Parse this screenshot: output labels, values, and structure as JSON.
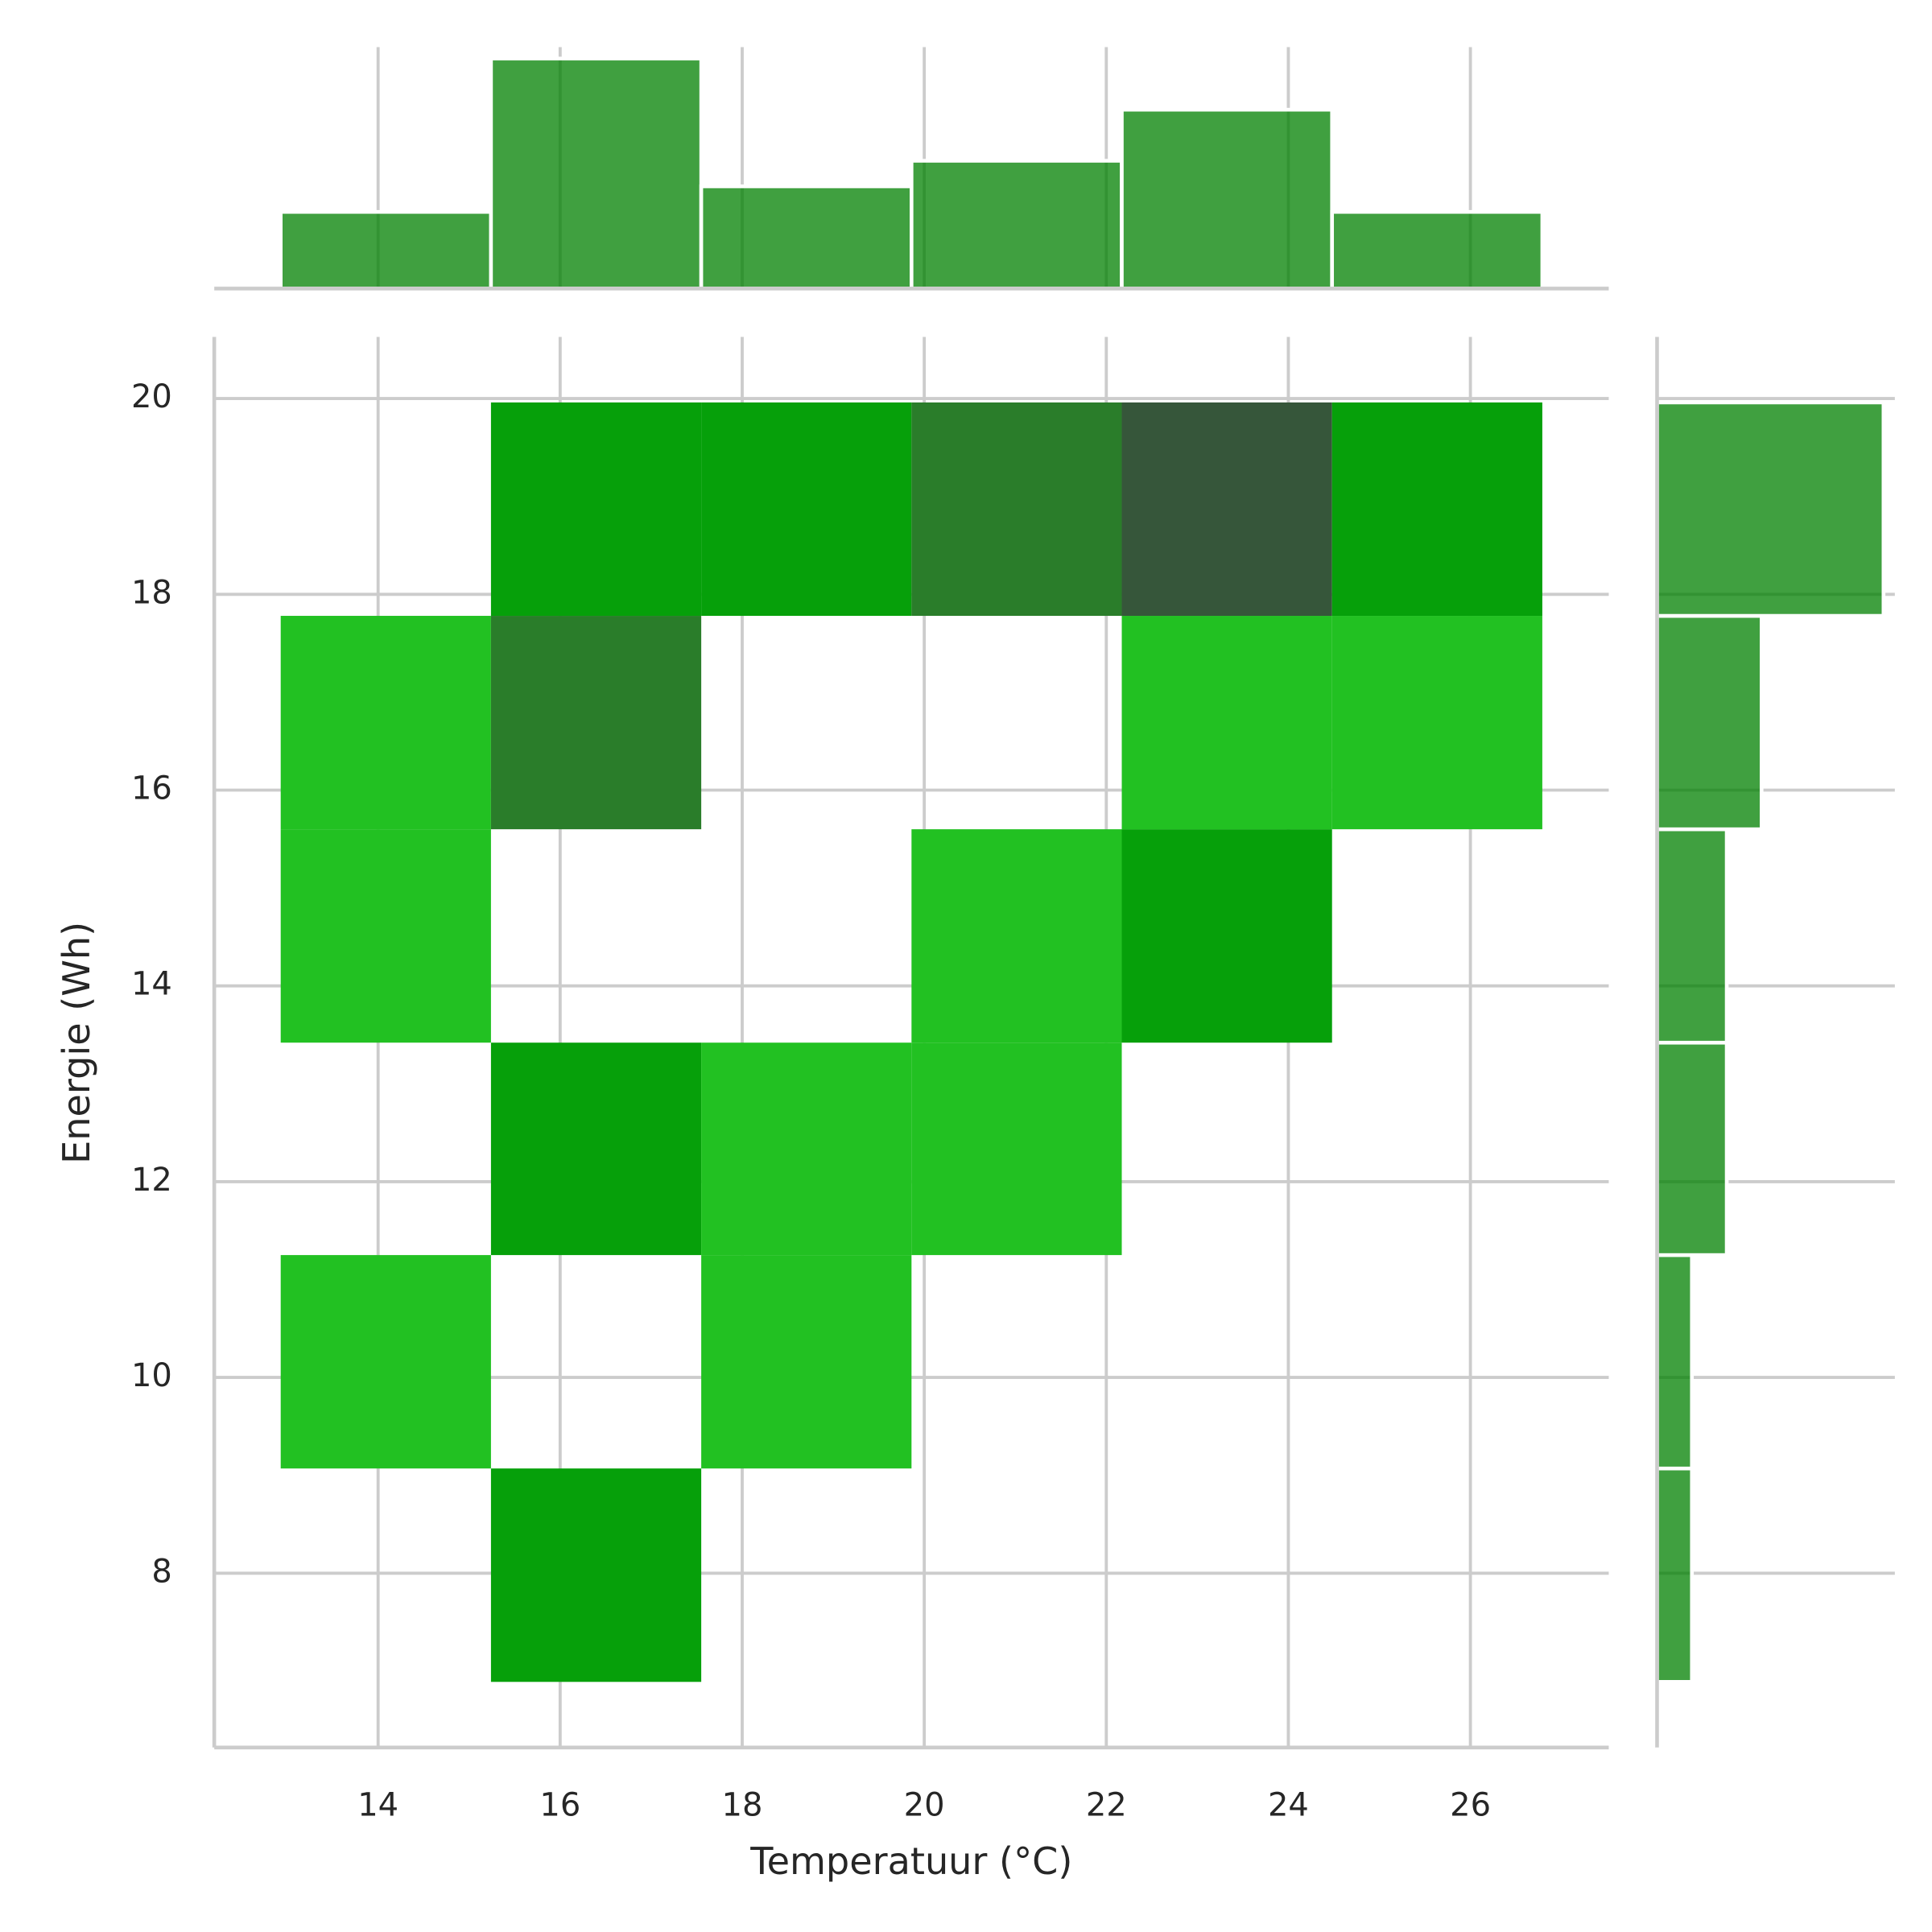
{
  "chart_data": {
    "type": "hist2d",
    "x_label": "Temperatuur (°C)",
    "y_label": "Energie (Wh)",
    "x_bins": [
      12.93,
      15.24,
      17.55,
      19.86,
      22.17,
      24.48,
      26.79
    ],
    "y_bins": [
      6.89,
      9.07,
      11.25,
      13.42,
      15.6,
      17.78,
      19.96
    ],
    "counts": [
      [
        0,
        2,
        0,
        0,
        0,
        0
      ],
      [
        1,
        0,
        1,
        0,
        0,
        0
      ],
      [
        0,
        2,
        1,
        1,
        0,
        0
      ],
      [
        1,
        0,
        0,
        1,
        2,
        0
      ],
      [
        1,
        3,
        0,
        0,
        1,
        1
      ],
      [
        0,
        2,
        2,
        3,
        4,
        2
      ]
    ],
    "count_colors": [
      "#22c122",
      "#06a00a",
      "#2a7d2a",
      "#36563a"
    ],
    "xlim": [
      12.2,
      27.52
    ],
    "ylim": [
      6.22,
      20.63
    ],
    "xticks": [
      14,
      16,
      18,
      20,
      22,
      24,
      26
    ],
    "yticks": [
      8,
      10,
      12,
      14,
      16,
      18,
      20
    ],
    "grid": true,
    "marginal_x": {
      "values": [
        3,
        9,
        4,
        5,
        7,
        3
      ],
      "lim": [
        0,
        9.45
      ],
      "color": "#008000",
      "alpha": 0.75
    },
    "marginal_y": {
      "values": [
        2,
        2,
        4,
        4,
        6,
        13
      ],
      "lim": [
        0,
        13.65
      ],
      "color": "#008000",
      "alpha": 0.75
    }
  }
}
